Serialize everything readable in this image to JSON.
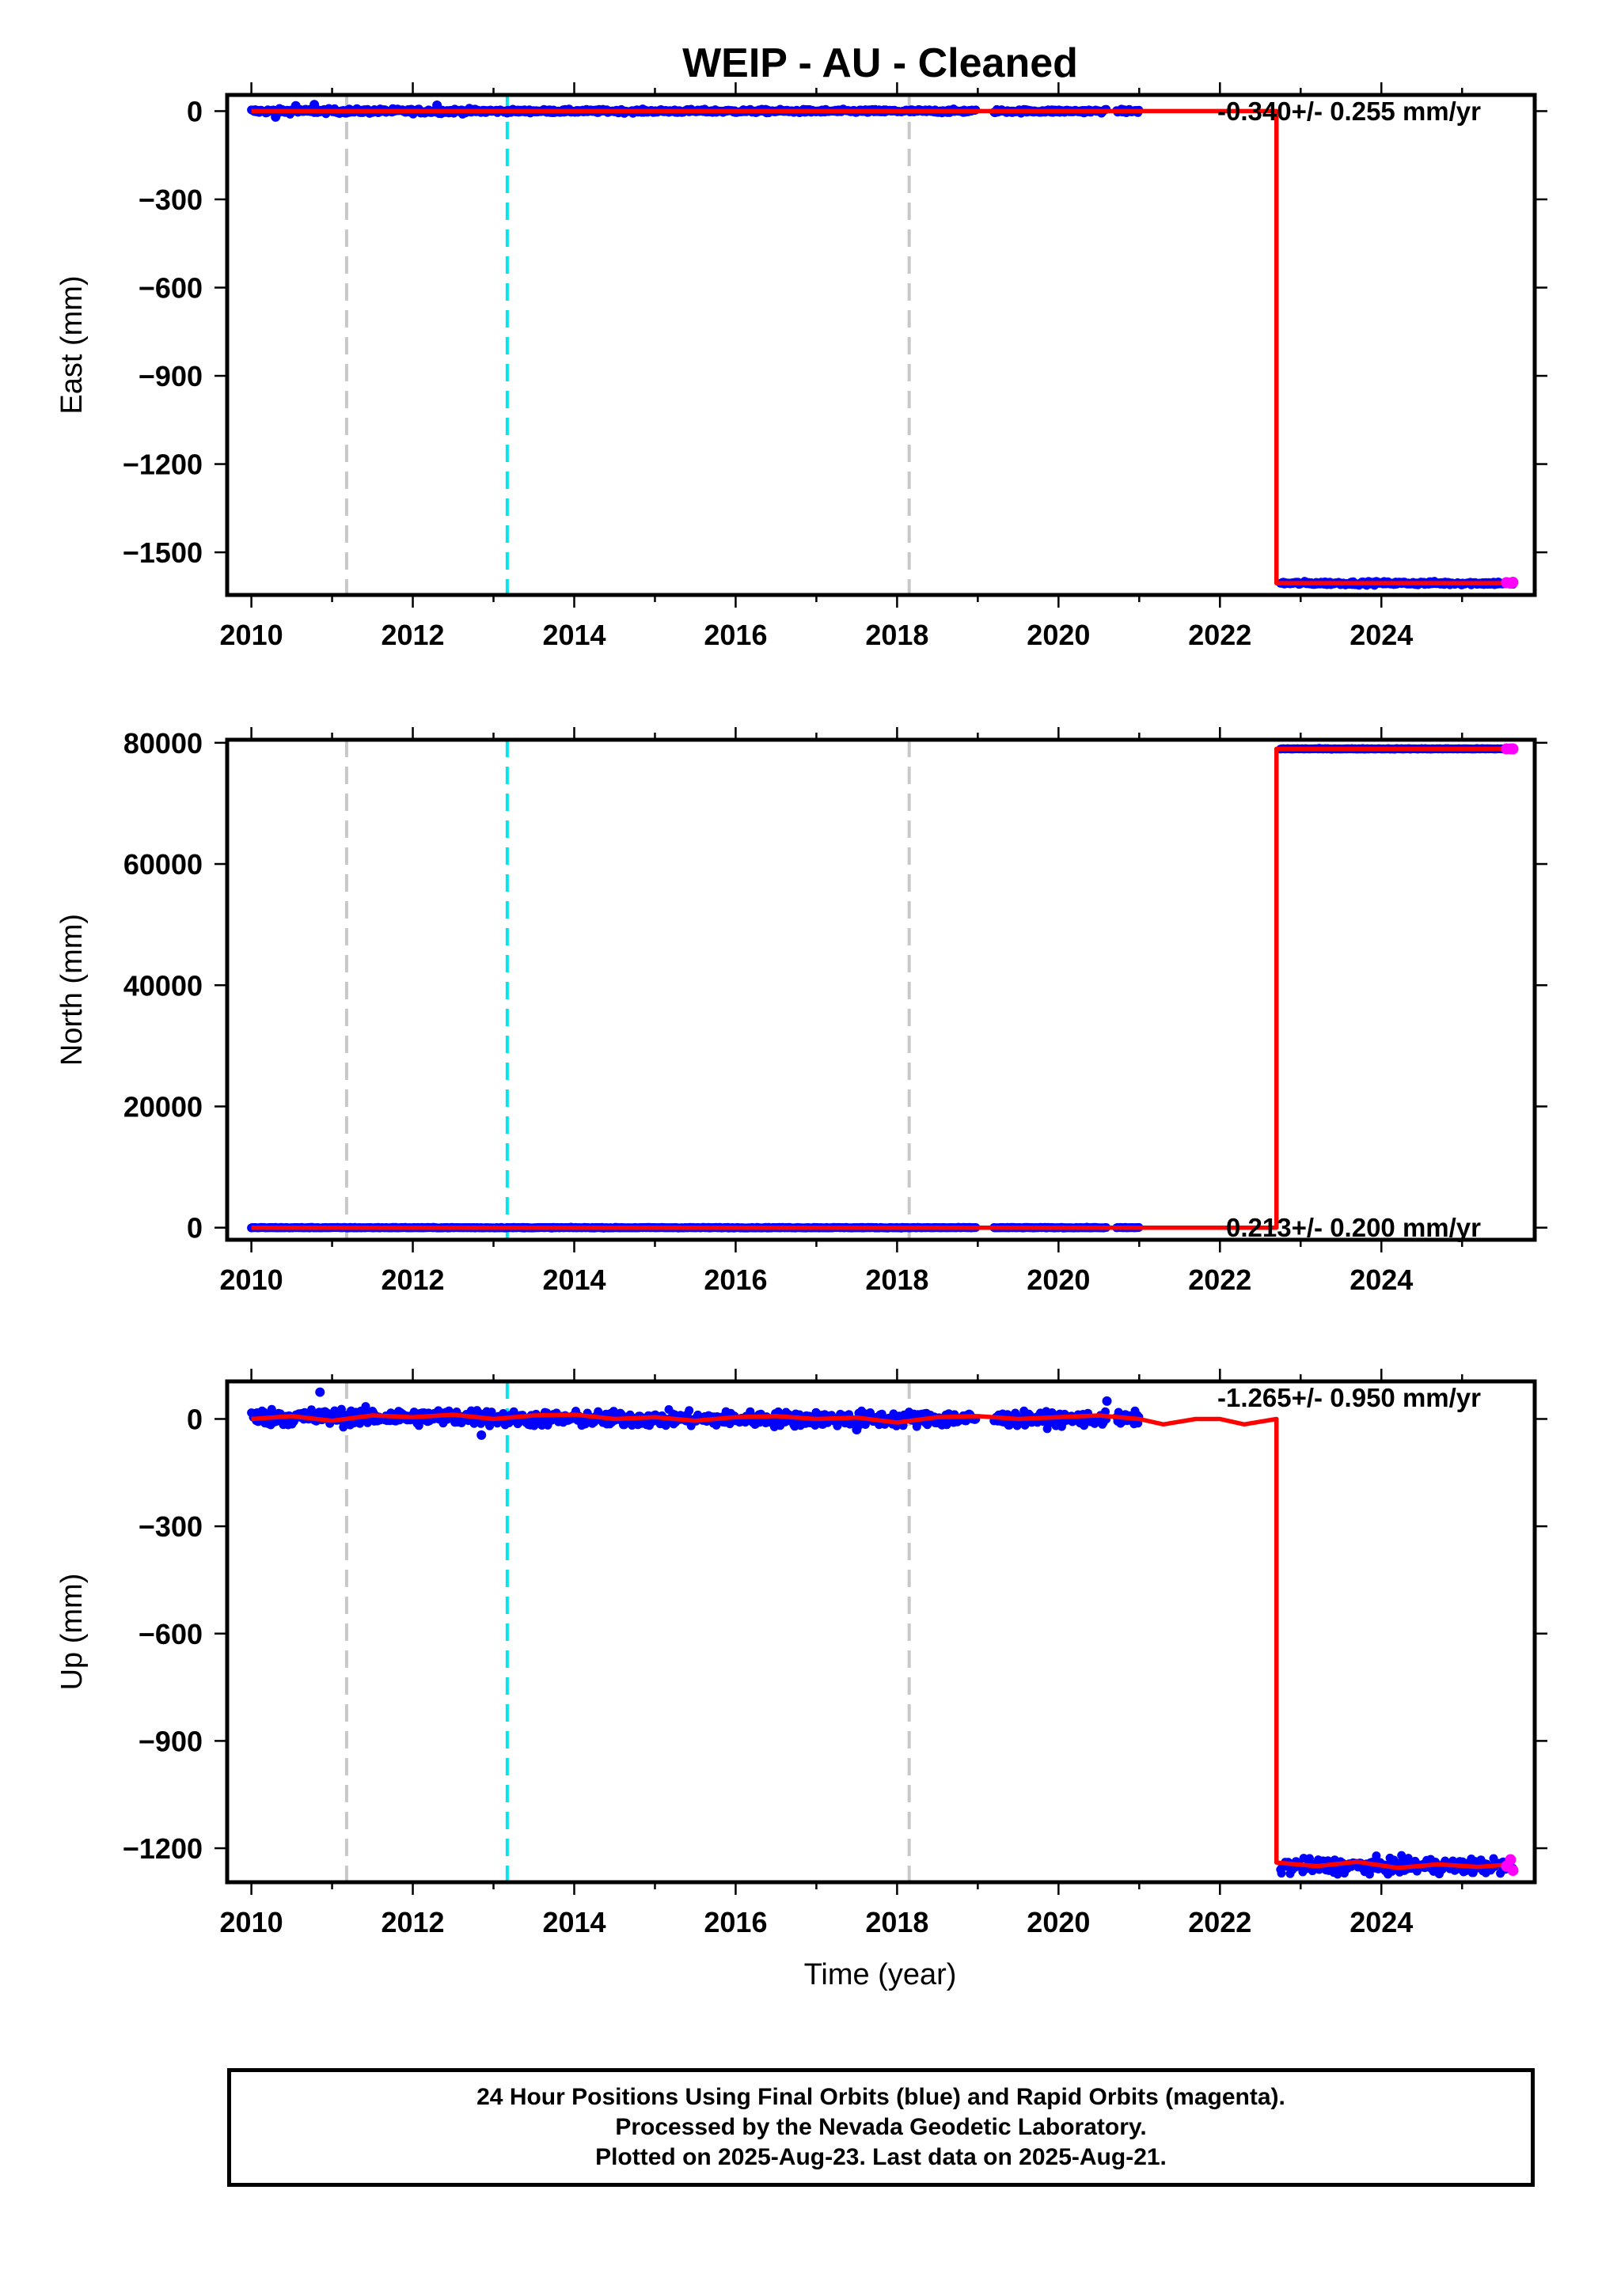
{
  "title": "WEIP  - AU - Cleaned",
  "xlabel": "Time (year)",
  "colors": {
    "final_orbits": "#0000ff",
    "rapid_orbits": "#ff00ff",
    "model_fit": "#ff0000",
    "event_gray": "#c8c8c8",
    "event_cyan": "#00e5ee",
    "frame": "#000000"
  },
  "footer": {
    "line1": "24 Hour Positions Using Final Orbits (blue) and Rapid Orbits (magenta).",
    "line2": "Processed by the Nevada Geodetic Laboratory.",
    "line3": "Plotted on 2025-Aug-23. Last data on 2025-Aug-21."
  },
  "chart_data": [
    {
      "type": "scatter",
      "component": "East",
      "ylabel": "East (mm)",
      "rate_label": "-0.340+/- 0.255 mm/yr",
      "xlim": [
        2009.7,
        2025.9
      ],
      "ylim": [
        -1645,
        55
      ],
      "xticks": [
        2010,
        2012,
        2014,
        2016,
        2018,
        2020,
        2022,
        2024
      ],
      "yticks": [
        0,
        -300,
        -600,
        -900,
        -1200,
        -1500
      ],
      "ytick_labels": [
        "0",
        "−300",
        "−600",
        "−900",
        "−1200",
        "−1500"
      ],
      "event_lines": [
        {
          "x": 2011.18,
          "style": "gray"
        },
        {
          "x": 2013.17,
          "style": "cyan"
        },
        {
          "x": 2018.15,
          "style": "gray"
        }
      ],
      "data_segments": [
        {
          "start": 2010.0,
          "end": 2012.98,
          "base": 0,
          "noise": 8
        },
        {
          "start": 2013.0,
          "end": 2018.98,
          "base": 0,
          "noise": 6
        },
        {
          "start": 2019.2,
          "end": 2020.6,
          "base": 0,
          "noise": 6
        },
        {
          "start": 2020.72,
          "end": 2021.0,
          "base": 0,
          "noise": 6
        },
        {
          "start": 2022.75,
          "end": 2025.64,
          "base": -1605,
          "noise": 6
        }
      ],
      "outliers": [
        {
          "x": 2010.55,
          "y": 18
        },
        {
          "x": 2010.78,
          "y": 22
        },
        {
          "x": 2012.3,
          "y": 20
        },
        {
          "x": 2010.3,
          "y": -20
        }
      ],
      "model": [
        [
          2010.0,
          0
        ],
        [
          2022.7,
          0
        ],
        [
          2022.7,
          -1605
        ],
        [
          2025.6,
          -1605
        ]
      ],
      "rapid": [
        [
          2025.55,
          -1603
        ],
        [
          2025.6,
          -1605
        ],
        [
          2025.63,
          -1602
        ]
      ]
    },
    {
      "type": "scatter",
      "component": "North",
      "ylabel": "North (mm)",
      "rate_label": "0.213+/- 0.200 mm/yr",
      "xlim": [
        2009.7,
        2025.9
      ],
      "ylim": [
        -2000,
        80500
      ],
      "xticks": [
        2010,
        2012,
        2014,
        2016,
        2018,
        2020,
        2022,
        2024
      ],
      "yticks": [
        0,
        20000,
        40000,
        60000,
        80000
      ],
      "ytick_labels": [
        "0",
        "20000",
        "40000",
        "60000",
        "80000"
      ],
      "event_lines": [
        {
          "x": 2011.18,
          "style": "gray"
        },
        {
          "x": 2013.17,
          "style": "cyan"
        },
        {
          "x": 2018.15,
          "style": "gray"
        }
      ],
      "data_segments": [
        {
          "start": 2010.0,
          "end": 2012.98,
          "base": 0,
          "noise": 60
        },
        {
          "start": 2013.0,
          "end": 2018.98,
          "base": 0,
          "noise": 60
        },
        {
          "start": 2019.2,
          "end": 2020.6,
          "base": 0,
          "noise": 60
        },
        {
          "start": 2020.72,
          "end": 2021.0,
          "base": 0,
          "noise": 60
        },
        {
          "start": 2022.75,
          "end": 2025.64,
          "base": 79000,
          "noise": 60
        }
      ],
      "outliers": [],
      "model": [
        [
          2010.0,
          0
        ],
        [
          2022.7,
          0
        ],
        [
          2022.7,
          79000
        ],
        [
          2025.6,
          79000
        ]
      ],
      "rapid": [
        [
          2025.55,
          79000
        ],
        [
          2025.6,
          79000
        ],
        [
          2025.63,
          79000
        ]
      ]
    },
    {
      "type": "scatter",
      "component": "Up",
      "ylabel": "Up (mm)",
      "rate_label": "-1.265+/- 0.950 mm/yr",
      "xlim": [
        2009.7,
        2025.9
      ],
      "ylim": [
        -1295,
        105
      ],
      "xticks": [
        2010,
        2012,
        2014,
        2016,
        2018,
        2020,
        2022,
        2024
      ],
      "yticks": [
        0,
        -300,
        -600,
        -900,
        -1200
      ],
      "ytick_labels": [
        "0",
        "−300",
        "−600",
        "−900",
        "−1200"
      ],
      "event_lines": [
        {
          "x": 2011.18,
          "style": "gray"
        },
        {
          "x": 2013.17,
          "style": "cyan"
        },
        {
          "x": 2018.15,
          "style": "gray"
        }
      ],
      "data_segments": [
        {
          "start": 2010.0,
          "end": 2012.98,
          "base": 5,
          "noise": 22
        },
        {
          "start": 2013.0,
          "end": 2018.98,
          "base": 0,
          "noise": 20
        },
        {
          "start": 2019.2,
          "end": 2020.6,
          "base": 0,
          "noise": 18
        },
        {
          "start": 2020.72,
          "end": 2021.0,
          "base": 0,
          "noise": 18
        },
        {
          "start": 2022.75,
          "end": 2025.64,
          "base": -1250,
          "noise": 20
        }
      ],
      "outliers": [
        {
          "x": 2010.85,
          "y": 75
        },
        {
          "x": 2012.85,
          "y": -45
        },
        {
          "x": 2020.6,
          "y": 50
        },
        {
          "x": 2017.5,
          "y": -30
        }
      ],
      "model": [
        [
          2010.0,
          0
        ],
        [
          2010.5,
          8
        ],
        [
          2011.0,
          -5
        ],
        [
          2011.5,
          10
        ],
        [
          2012.0,
          5
        ],
        [
          2012.5,
          12
        ],
        [
          2013.0,
          0
        ],
        [
          2013.5,
          10
        ],
        [
          2014.0,
          12
        ],
        [
          2014.5,
          0
        ],
        [
          2015.0,
          5
        ],
        [
          2015.5,
          -5
        ],
        [
          2016.0,
          5
        ],
        [
          2016.5,
          8
        ],
        [
          2017.0,
          0
        ],
        [
          2017.5,
          4
        ],
        [
          2018.0,
          -10
        ],
        [
          2018.5,
          5
        ],
        [
          2019.0,
          8
        ],
        [
          2019.5,
          0
        ],
        [
          2020.0,
          5
        ],
        [
          2020.5,
          10
        ],
        [
          2021.0,
          0
        ],
        [
          2021.3,
          -15
        ],
        [
          2021.7,
          0
        ],
        [
          2022.0,
          0
        ],
        [
          2022.3,
          -15
        ],
        [
          2022.7,
          0
        ],
        [
          2022.7,
          -1240
        ],
        [
          2023.2,
          -1250
        ],
        [
          2023.7,
          -1238
        ],
        [
          2024.2,
          -1255
        ],
        [
          2024.7,
          -1245
        ],
        [
          2025.2,
          -1252
        ],
        [
          2025.6,
          -1245
        ]
      ],
      "rapid": [
        [
          2025.55,
          -1250
        ],
        [
          2025.6,
          -1232
        ],
        [
          2025.63,
          -1262
        ]
      ]
    }
  ]
}
